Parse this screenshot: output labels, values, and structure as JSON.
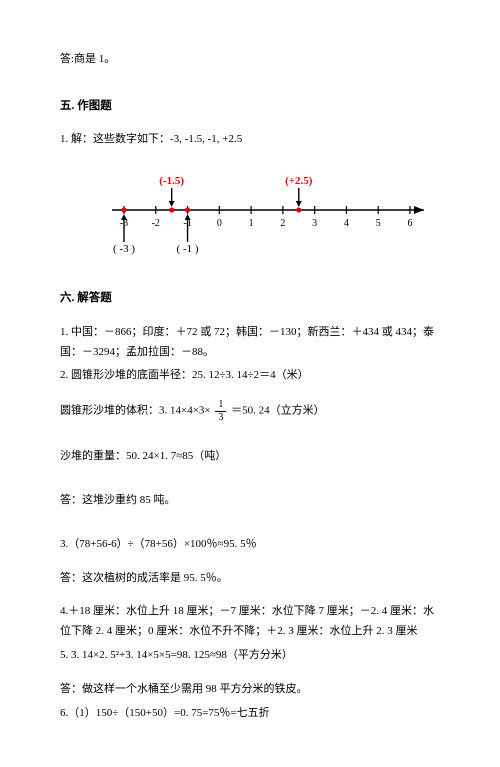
{
  "answer_top": "答:商是 1。",
  "section5": {
    "title": "五. 作图题",
    "q1_intro": "1. 解：这些数字如下：-3, -1.5, -1, +2.5",
    "numberline": {
      "min": -3,
      "max": 6,
      "ticks": [
        -3,
        -2,
        -1,
        0,
        1,
        2,
        3,
        4,
        5,
        6
      ],
      "labels": {
        "top": [
          {
            "x": -1.5,
            "text": "(-1.5)",
            "color": "#e60000"
          },
          {
            "x": 2.5,
            "text": "(+2.5)",
            "color": "#e60000"
          }
        ],
        "bottom": [
          {
            "x": -3,
            "text": "( -3 )",
            "color": "#000"
          },
          {
            "x": -1,
            "text": "( -1 )",
            "color": "#000"
          }
        ]
      },
      "points": [
        -3,
        -1.5,
        -1,
        2.5
      ],
      "arrows_down": [
        -1.5,
        2.5
      ],
      "arrows_up": [
        -3,
        -1
      ],
      "axis_color": "#000",
      "point_color": "#e60000",
      "label_fontsize": 10
    }
  },
  "section6": {
    "title": "六. 解答题",
    "q1": "1. 中国：－866；印度：＋72 或 72；韩国：－130；新西兰：＋434 或 434；泰国：－3294；孟加拉国：－88。",
    "q2a": "2. 圆锥形沙堆的底面半径：25. 12÷3. 14÷2＝4（米）",
    "q2b_pre": "圆锥形沙堆的体积：3. 14×4×3×",
    "q2b_frac_num": "1",
    "q2b_frac_den": "3",
    "q2b_post": "＝50. 24（立方米）",
    "q2c": "沙堆的重量：50. 24×1. 7≈85（吨）",
    "q2ans": "答：这堆沙重约 85 吨。",
    "q3a": "3.（78+56-6）÷（78+56）×100％≈95. 5％",
    "q3ans": "答：这次植树的成活率是 95. 5％。",
    "q4": "4.＋18 厘米：水位上升 18 厘米；－7 厘米：水位下降 7 厘米；－2. 4 厘米：水位下降 2. 4 厘米；0 厘米：水位不升不降；＋2. 3 厘米：水位上升 2. 3 厘米",
    "q5a": "5. 3. 14×2. 5²+3. 14×5×5=98. 125≈98（平方分米）",
    "q5ans": "答：做这样一个水桶至少需用 98 平方分米的铁皮。",
    "q6": "6.（1）150÷（150+50）=0. 75=75％=七五折"
  }
}
